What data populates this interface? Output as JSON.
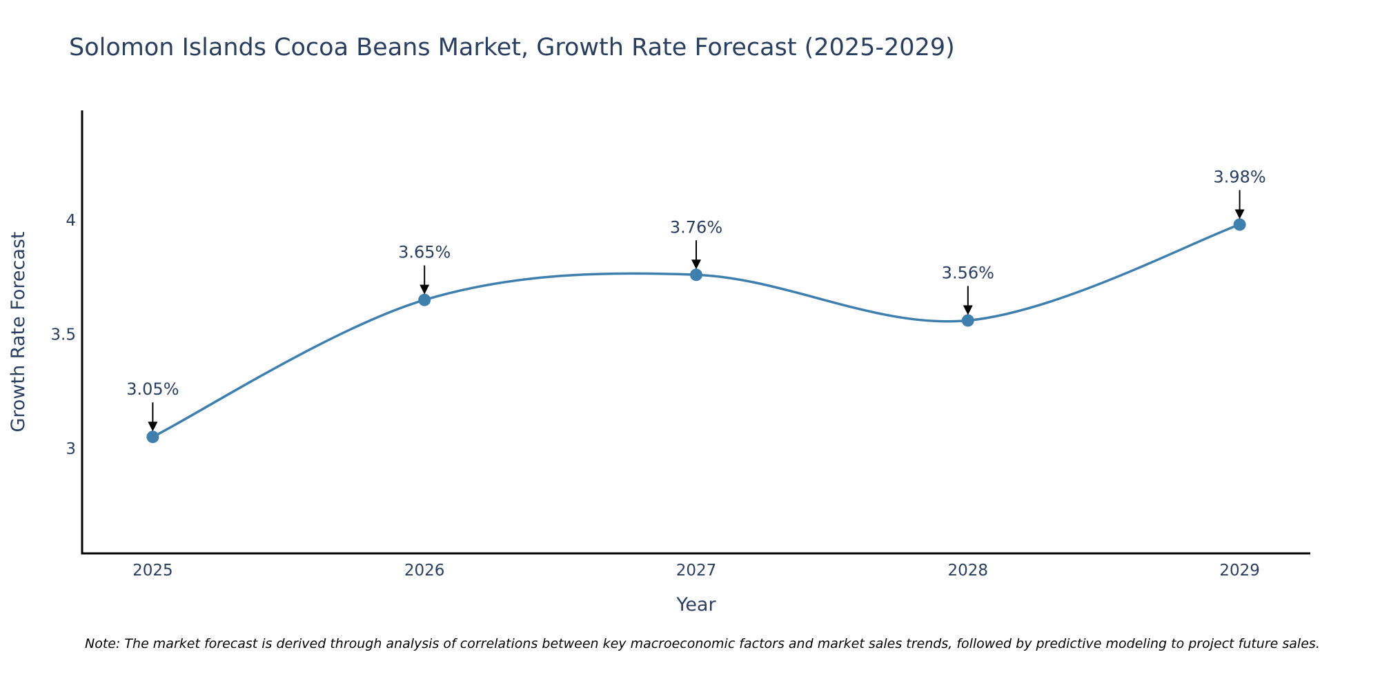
{
  "chart_data": {
    "type": "line",
    "title": "Solomon Islands Cocoa Beans Market, Growth Rate Forecast (2025-2029)",
    "xlabel": "Year",
    "ylabel": "Growth Rate Forecast",
    "categories": [
      "2025",
      "2026",
      "2027",
      "2028",
      "2029"
    ],
    "x": [
      2025,
      2026,
      2027,
      2028,
      2029
    ],
    "values": [
      3.05,
      3.65,
      3.76,
      3.56,
      3.98
    ],
    "data_labels": [
      "3.05%",
      "3.65%",
      "3.76%",
      "3.56%",
      "3.98%"
    ],
    "y_ticks": [
      3,
      3.5,
      4
    ],
    "y_tick_labels": [
      "3",
      "3.5",
      "4"
    ],
    "ylim": [
      2.54,
      4.48
    ],
    "xlim": [
      2024.74,
      2029.26
    ],
    "grid": false,
    "line_shape": "spline",
    "line_color": "#3f7fae",
    "marker_color": "#3f7fae",
    "note": "Note: The market forecast is derived through analysis of correlations between key macroeconomic factors and market sales trends, followed by predictive modeling to project future sales."
  }
}
